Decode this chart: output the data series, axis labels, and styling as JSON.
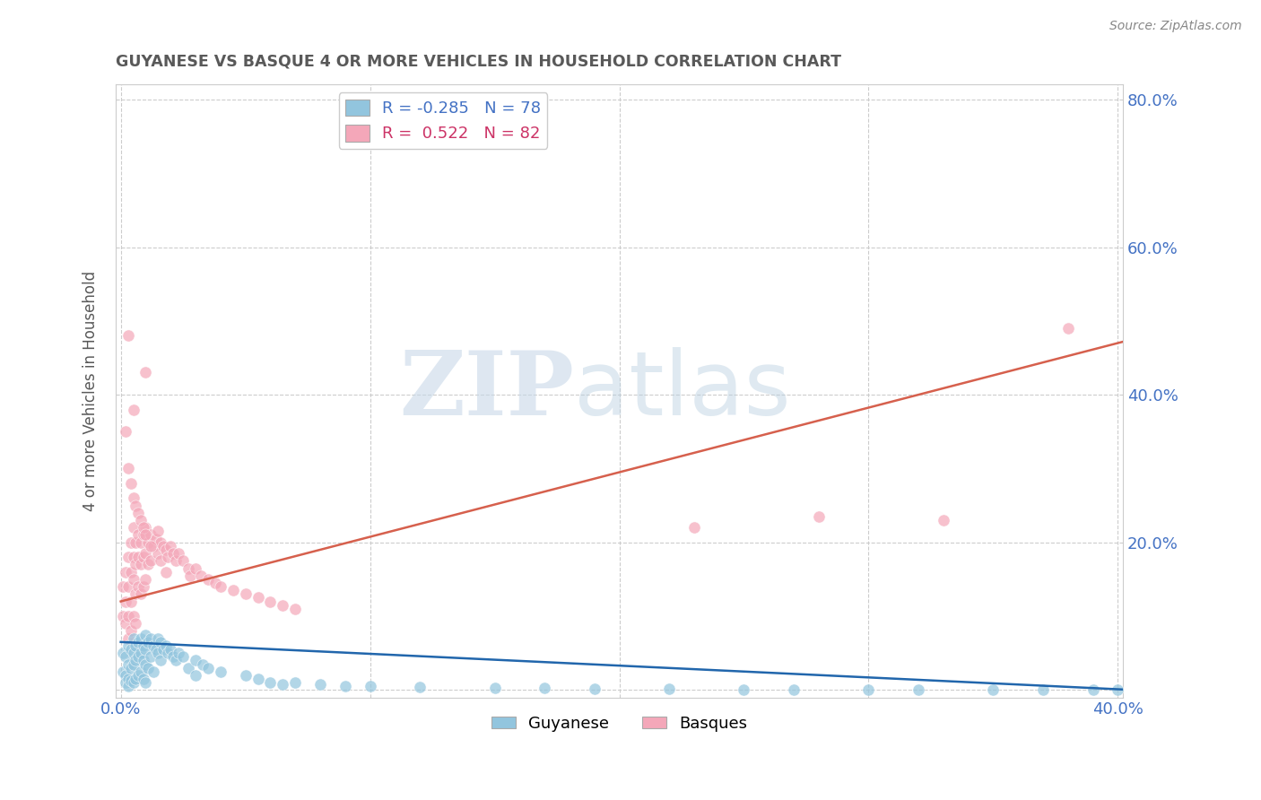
{
  "title": "GUYANESE VS BASQUE 4 OR MORE VEHICLES IN HOUSEHOLD CORRELATION CHART",
  "source": "Source: ZipAtlas.com",
  "ylabel": "4 or more Vehicles in Household",
  "xlabel": "",
  "xlim": [
    -0.002,
    0.402
  ],
  "ylim": [
    -0.01,
    0.82
  ],
  "xticks": [
    0.0,
    0.1,
    0.2,
    0.3,
    0.4
  ],
  "yticks": [
    0.0,
    0.2,
    0.4,
    0.6,
    0.8
  ],
  "xtick_labels": [
    "0.0%",
    "",
    "",
    "",
    "40.0%"
  ],
  "ytick_labels": [
    "",
    "20.0%",
    "40.0%",
    "60.0%",
    "80.0%"
  ],
  "guyanese_color": "#92c5de",
  "basque_color": "#f4a7b9",
  "guyanese_line_color": "#2166ac",
  "basque_line_color": "#d6604d",
  "guyanese_R": -0.285,
  "guyanese_N": 78,
  "basque_R": 0.522,
  "basque_N": 82,
  "watermark_zip": "ZIP",
  "watermark_atlas": "atlas",
  "background_color": "#ffffff",
  "grid_color": "#cccccc",
  "title_color": "#595959",
  "axis_label_color": "#595959",
  "tick_label_color": "#4472c4",
  "guyanese_x": [
    0.001,
    0.001,
    0.002,
    0.002,
    0.002,
    0.003,
    0.003,
    0.003,
    0.003,
    0.004,
    0.004,
    0.004,
    0.005,
    0.005,
    0.005,
    0.005,
    0.006,
    0.006,
    0.006,
    0.007,
    0.007,
    0.007,
    0.008,
    0.008,
    0.008,
    0.009,
    0.009,
    0.009,
    0.01,
    0.01,
    0.01,
    0.01,
    0.011,
    0.011,
    0.012,
    0.012,
    0.013,
    0.013,
    0.014,
    0.015,
    0.015,
    0.016,
    0.016,
    0.017,
    0.018,
    0.019,
    0.02,
    0.021,
    0.022,
    0.023,
    0.025,
    0.027,
    0.03,
    0.03,
    0.033,
    0.035,
    0.04,
    0.05,
    0.055,
    0.06,
    0.065,
    0.07,
    0.08,
    0.09,
    0.1,
    0.12,
    0.15,
    0.17,
    0.19,
    0.22,
    0.25,
    0.27,
    0.3,
    0.32,
    0.35,
    0.37,
    0.39,
    0.4
  ],
  "guyanese_y": [
    0.05,
    0.025,
    0.045,
    0.02,
    0.01,
    0.06,
    0.035,
    0.015,
    0.005,
    0.055,
    0.03,
    0.012,
    0.07,
    0.05,
    0.035,
    0.01,
    0.06,
    0.04,
    0.015,
    0.065,
    0.045,
    0.02,
    0.07,
    0.05,
    0.025,
    0.06,
    0.04,
    0.015,
    0.075,
    0.055,
    0.035,
    0.01,
    0.065,
    0.03,
    0.07,
    0.045,
    0.06,
    0.025,
    0.055,
    0.07,
    0.05,
    0.065,
    0.04,
    0.055,
    0.06,
    0.05,
    0.055,
    0.045,
    0.04,
    0.05,
    0.045,
    0.03,
    0.04,
    0.02,
    0.035,
    0.03,
    0.025,
    0.02,
    0.015,
    0.01,
    0.008,
    0.01,
    0.008,
    0.005,
    0.005,
    0.004,
    0.003,
    0.003,
    0.002,
    0.002,
    0.001,
    0.001,
    0.001,
    0.001,
    0.001,
    0.001,
    0.001,
    0.001
  ],
  "basque_x": [
    0.001,
    0.001,
    0.002,
    0.002,
    0.002,
    0.003,
    0.003,
    0.003,
    0.003,
    0.004,
    0.004,
    0.004,
    0.004,
    0.005,
    0.005,
    0.005,
    0.005,
    0.006,
    0.006,
    0.006,
    0.006,
    0.007,
    0.007,
    0.007,
    0.008,
    0.008,
    0.008,
    0.009,
    0.009,
    0.009,
    0.01,
    0.01,
    0.01,
    0.011,
    0.011,
    0.012,
    0.012,
    0.013,
    0.014,
    0.015,
    0.015,
    0.016,
    0.016,
    0.017,
    0.018,
    0.019,
    0.02,
    0.021,
    0.022,
    0.023,
    0.025,
    0.027,
    0.028,
    0.03,
    0.032,
    0.035,
    0.038,
    0.04,
    0.045,
    0.05,
    0.055,
    0.06,
    0.065,
    0.07,
    0.01,
    0.003,
    0.005,
    0.002,
    0.23,
    0.28,
    0.33,
    0.38,
    0.003,
    0.004,
    0.005,
    0.006,
    0.007,
    0.008,
    0.009,
    0.01,
    0.012,
    0.018
  ],
  "basque_y": [
    0.14,
    0.1,
    0.16,
    0.12,
    0.09,
    0.18,
    0.14,
    0.1,
    0.07,
    0.2,
    0.16,
    0.12,
    0.08,
    0.22,
    0.18,
    0.15,
    0.1,
    0.2,
    0.17,
    0.13,
    0.09,
    0.21,
    0.18,
    0.14,
    0.2,
    0.17,
    0.13,
    0.21,
    0.18,
    0.14,
    0.22,
    0.185,
    0.15,
    0.2,
    0.17,
    0.21,
    0.175,
    0.195,
    0.205,
    0.215,
    0.185,
    0.2,
    0.175,
    0.195,
    0.19,
    0.18,
    0.195,
    0.185,
    0.175,
    0.185,
    0.175,
    0.165,
    0.155,
    0.165,
    0.155,
    0.15,
    0.145,
    0.14,
    0.135,
    0.13,
    0.125,
    0.12,
    0.115,
    0.11,
    0.43,
    0.48,
    0.38,
    0.35,
    0.22,
    0.235,
    0.23,
    0.49,
    0.3,
    0.28,
    0.26,
    0.25,
    0.24,
    0.23,
    0.22,
    0.21,
    0.195,
    0.16
  ]
}
